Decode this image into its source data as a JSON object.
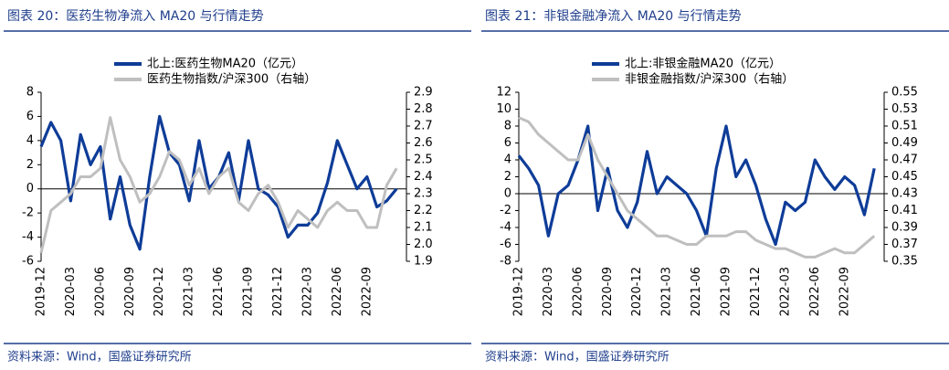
{
  "chart_data": [
    {
      "type": "line",
      "title": "图表 20：医药生物净流入 MA20 与行情走势",
      "source": "资料来源：Wind，国盛证券研究所",
      "x": [
        "2019-12",
        "2020-01",
        "2020-02",
        "2020-03",
        "2020-04",
        "2020-05",
        "2020-06",
        "2020-07",
        "2020-08",
        "2020-09",
        "2020-10",
        "2020-11",
        "2020-12",
        "2021-01",
        "2021-02",
        "2021-03",
        "2021-04",
        "2021-05",
        "2021-06",
        "2021-07",
        "2021-08",
        "2021-09",
        "2021-10",
        "2021-11",
        "2021-12",
        "2022-01",
        "2022-02",
        "2022-03",
        "2022-04",
        "2022-05",
        "2022-06",
        "2022-07",
        "2022-08",
        "2022-09",
        "2022-10",
        "2022-11",
        "2022-12"
      ],
      "xlim": [
        "2019-12",
        "2023-01"
      ],
      "xticks": [
        "2019-12",
        "2020-03",
        "2020-06",
        "2020-09",
        "2020-12",
        "2021-03",
        "2021-06",
        "2021-09",
        "2021-12",
        "2022-03",
        "2022-06",
        "2022-09"
      ],
      "ylim": [
        -6,
        8
      ],
      "yticks": [
        -6,
        -4,
        -2,
        0,
        2,
        4,
        6,
        8
      ],
      "y2lim": [
        1.9,
        2.9
      ],
      "y2ticks": [
        1.9,
        {
          "value": 2,
          "label": "2.0"
        },
        2.1,
        2.2,
        2.3,
        2.4,
        2.5,
        2.6,
        2.7,
        2.8,
        2.9
      ],
      "legend": "top",
      "series": [
        {
          "name": "北上:医药生物MA20（亿元）",
          "color": "#0e3c98",
          "values": [
            3.5,
            5.5,
            4,
            -1,
            4.5,
            2,
            3.5,
            -2.5,
            1,
            -3,
            -5,
            1,
            6,
            3,
            2,
            -1,
            4,
            0,
            1,
            3,
            -1,
            4,
            0,
            -0.5,
            -1.5,
            -4,
            -3,
            -3,
            -2,
            0.5,
            4,
            2,
            0,
            1,
            -1.5,
            -1,
            0
          ]
        },
        {
          "name": "医药生物指数/沪深300（右轴）",
          "color": "#bfbfbf",
          "axis": "y2",
          "values": [
            1.95,
            2.2,
            2.25,
            2.3,
            2.4,
            2.4,
            2.45,
            2.75,
            2.5,
            2.4,
            2.25,
            2.3,
            2.4,
            2.55,
            2.5,
            2.35,
            2.45,
            2.3,
            2.4,
            2.45,
            2.25,
            2.2,
            2.3,
            2.35,
            2.25,
            2.1,
            2.2,
            2.15,
            2.1,
            2.2,
            2.25,
            2.2,
            2.2,
            2.1,
            2.1,
            2.35,
            2.45
          ]
        }
      ]
    },
    {
      "type": "line",
      "title": "图表 21：非银金融净流入 MA20 与行情走势",
      "source": "资料来源：Wind，国盛证券研究所",
      "x": [
        "2019-12",
        "2020-01",
        "2020-02",
        "2020-03",
        "2020-04",
        "2020-05",
        "2020-06",
        "2020-07",
        "2020-08",
        "2020-09",
        "2020-10",
        "2020-11",
        "2020-12",
        "2021-01",
        "2021-02",
        "2021-03",
        "2021-04",
        "2021-05",
        "2021-06",
        "2021-07",
        "2021-08",
        "2021-09",
        "2021-10",
        "2021-11",
        "2021-12",
        "2022-01",
        "2022-02",
        "2022-03",
        "2022-04",
        "2022-05",
        "2022-06",
        "2022-07",
        "2022-08",
        "2022-09",
        "2022-10",
        "2022-11",
        "2022-12"
      ],
      "xlim": [
        "2019-12",
        "2023-01"
      ],
      "xticks": [
        "2019-12",
        "2020-03",
        "2020-06",
        "2020-09",
        "2020-12",
        "2021-03",
        "2021-06",
        "2021-09",
        "2021-12",
        "2022-03",
        "2022-06",
        "2022-09"
      ],
      "ylim": [
        -8,
        12
      ],
      "yticks": [
        -8,
        -6,
        -4,
        -2,
        0,
        2,
        4,
        6,
        8,
        10,
        12
      ],
      "y2lim": [
        0.35,
        0.55
      ],
      "y2ticks": [
        0.35,
        0.37,
        0.39,
        0.41,
        0.43,
        0.45,
        0.47,
        0.49,
        0.51,
        0.53,
        0.55
      ],
      "legend": "top",
      "series": [
        {
          "name": "北上:非银金融MA20（亿元）",
          "color": "#0e3c98",
          "values": [
            4.5,
            3,
            1,
            -5,
            0,
            1,
            4,
            8,
            -2,
            3,
            -2,
            -4,
            -1,
            5,
            0,
            2,
            1,
            0,
            -2,
            -5,
            3,
            8,
            2,
            4,
            1,
            -3,
            -6,
            -1,
            -2,
            -1,
            4,
            2,
            0.5,
            2,
            1,
            -2.5,
            3
          ]
        },
        {
          "name": "非银金融指数/沪深300（右轴）",
          "color": "#bfbfbf",
          "axis": "y2",
          "values": [
            0.52,
            0.515,
            0.5,
            0.49,
            0.48,
            0.47,
            0.47,
            0.5,
            0.47,
            0.45,
            0.43,
            0.41,
            0.4,
            0.39,
            0.38,
            0.38,
            0.375,
            0.37,
            0.37,
            0.38,
            0.38,
            0.38,
            0.385,
            0.385,
            0.375,
            0.37,
            0.365,
            0.365,
            0.36,
            0.355,
            0.355,
            0.36,
            0.365,
            0.36,
            0.36,
            0.37,
            0.38
          ]
        }
      ]
    }
  ]
}
